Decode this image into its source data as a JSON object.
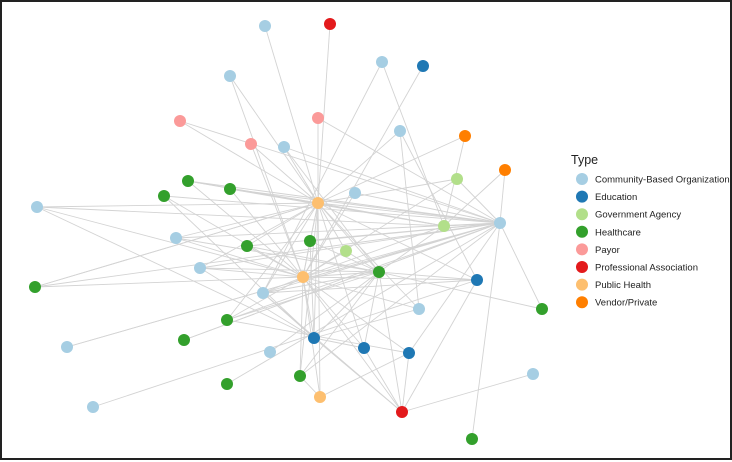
{
  "chart_data": {
    "type": "network",
    "legend": {
      "title": "Type",
      "items": [
        {
          "label": "Community-Based Organization",
          "color": "#a6cee3"
        },
        {
          "label": "Education",
          "color": "#1f78b4"
        },
        {
          "label": "Government Agency",
          "color": "#b2df8a"
        },
        {
          "label": "Healthcare",
          "color": "#33a02c"
        },
        {
          "label": "Payor",
          "color": "#fb9a99"
        },
        {
          "label": "Professional Association",
          "color": "#e31a1c"
        },
        {
          "label": "Public Health",
          "color": "#fdbf6f"
        },
        {
          "label": "Vendor/Private",
          "color": "#ff7f00"
        }
      ]
    },
    "edge_color": "#d3d3d3",
    "nodes": [
      {
        "id": "n1",
        "type": "Community-Based Organization"
      },
      {
        "id": "n2",
        "type": "Professional Association"
      },
      {
        "id": "n3",
        "type": "Community-Based Organization"
      },
      {
        "id": "n4",
        "type": "Education"
      },
      {
        "id": "n5",
        "type": "Community-Based Organization"
      },
      {
        "id": "n6",
        "type": "Payor"
      },
      {
        "id": "n7",
        "type": "Payor"
      },
      {
        "id": "n8",
        "type": "Payor"
      },
      {
        "id": "n9",
        "type": "Community-Based Organization"
      },
      {
        "id": "n10",
        "type": "Community-Based Organization"
      },
      {
        "id": "n11",
        "type": "Vendor/Private"
      },
      {
        "id": "n12",
        "type": "Vendor/Private"
      },
      {
        "id": "n13",
        "type": "Government Agency"
      },
      {
        "id": "n14",
        "type": "Healthcare"
      },
      {
        "id": "n15",
        "type": "Healthcare"
      },
      {
        "id": "n16",
        "type": "Healthcare"
      },
      {
        "id": "n17",
        "type": "Community-Based Organization"
      },
      {
        "id": "n18",
        "type": "Public Health"
      },
      {
        "id": "n19",
        "type": "Community-Based Organization"
      },
      {
        "id": "n20",
        "type": "Government Agency"
      },
      {
        "id": "n21",
        "type": "Community-Based Organization"
      },
      {
        "id": "n22",
        "type": "Community-Based Organization"
      },
      {
        "id": "n23",
        "type": "Healthcare"
      },
      {
        "id": "n24",
        "type": "Healthcare"
      },
      {
        "id": "n25",
        "type": "Government Agency"
      },
      {
        "id": "n26",
        "type": "Community-Based Organization"
      },
      {
        "id": "n27",
        "type": "Public Health"
      },
      {
        "id": "n28",
        "type": "Healthcare"
      },
      {
        "id": "n29",
        "type": "Education"
      },
      {
        "id": "n30",
        "type": "Healthcare"
      },
      {
        "id": "n31",
        "type": "Community-Based Organization"
      },
      {
        "id": "n32",
        "type": "Healthcare"
      },
      {
        "id": "n33",
        "type": "Community-Based Organization"
      },
      {
        "id": "n34",
        "type": "Healthcare"
      },
      {
        "id": "n35",
        "type": "Healthcare"
      },
      {
        "id": "n36",
        "type": "Education"
      },
      {
        "id": "n37",
        "type": "Community-Based Organization"
      },
      {
        "id": "n38",
        "type": "Education"
      },
      {
        "id": "n39",
        "type": "Community-Based Organization"
      },
      {
        "id": "n40",
        "type": "Education"
      },
      {
        "id": "n41",
        "type": "Healthcare"
      },
      {
        "id": "n42",
        "type": "Community-Based Organization"
      },
      {
        "id": "n43",
        "type": "Public Health"
      },
      {
        "id": "n44",
        "type": "Healthcare"
      },
      {
        "id": "n45",
        "type": "Professional Association"
      },
      {
        "id": "n46",
        "type": "Community-Based Organization"
      },
      {
        "id": "n47",
        "type": "Healthcare"
      }
    ],
    "edges": [
      [
        "n1",
        "n18"
      ],
      [
        "n2",
        "n18"
      ],
      [
        "n3",
        "n20"
      ],
      [
        "n4",
        "n27"
      ],
      [
        "n5",
        "n18"
      ],
      [
        "n5",
        "n27"
      ],
      [
        "n6",
        "n18"
      ],
      [
        "n6",
        "n21"
      ],
      [
        "n7",
        "n18"
      ],
      [
        "n7",
        "n27"
      ],
      [
        "n8",
        "n18"
      ],
      [
        "n8",
        "n21"
      ],
      [
        "n9",
        "n18"
      ],
      [
        "n9",
        "n21"
      ],
      [
        "n10",
        "n18"
      ],
      [
        "n10",
        "n33"
      ],
      [
        "n11",
        "n18"
      ],
      [
        "n11",
        "n20"
      ],
      [
        "n12",
        "n20"
      ],
      [
        "n12",
        "n21"
      ],
      [
        "n13",
        "n18"
      ],
      [
        "n13",
        "n21"
      ],
      [
        "n13",
        "n27"
      ],
      [
        "n14",
        "n18"
      ],
      [
        "n14",
        "n21"
      ],
      [
        "n14",
        "n27"
      ],
      [
        "n15",
        "n21"
      ],
      [
        "n15",
        "n27"
      ],
      [
        "n16",
        "n18"
      ],
      [
        "n16",
        "n21"
      ],
      [
        "n16",
        "n27"
      ],
      [
        "n17",
        "n21"
      ],
      [
        "n17",
        "n27"
      ],
      [
        "n18",
        "n19"
      ],
      [
        "n18",
        "n20"
      ],
      [
        "n18",
        "n21"
      ],
      [
        "n18",
        "n22"
      ],
      [
        "n18",
        "n23"
      ],
      [
        "n18",
        "n24"
      ],
      [
        "n18",
        "n25"
      ],
      [
        "n18",
        "n26"
      ],
      [
        "n18",
        "n27"
      ],
      [
        "n18",
        "n28"
      ],
      [
        "n18",
        "n29"
      ],
      [
        "n18",
        "n30"
      ],
      [
        "n18",
        "n31"
      ],
      [
        "n18",
        "n34"
      ],
      [
        "n18",
        "n36"
      ],
      [
        "n18",
        "n38"
      ],
      [
        "n18",
        "n41"
      ],
      [
        "n18",
        "n43"
      ],
      [
        "n19",
        "n20"
      ],
      [
        "n19",
        "n27"
      ],
      [
        "n19",
        "n36"
      ],
      [
        "n20",
        "n21"
      ],
      [
        "n20",
        "n27"
      ],
      [
        "n20",
        "n28"
      ],
      [
        "n21",
        "n23"
      ],
      [
        "n21",
        "n24"
      ],
      [
        "n21",
        "n26"
      ],
      [
        "n21",
        "n27"
      ],
      [
        "n21",
        "n30"
      ],
      [
        "n21",
        "n31"
      ],
      [
        "n21",
        "n32"
      ],
      [
        "n21",
        "n34"
      ],
      [
        "n21",
        "n35"
      ],
      [
        "n21",
        "n37"
      ],
      [
        "n21",
        "n40"
      ],
      [
        "n21",
        "n41"
      ],
      [
        "n22",
        "n21"
      ],
      [
        "n22",
        "n27"
      ],
      [
        "n23",
        "n27"
      ],
      [
        "n24",
        "n27"
      ],
      [
        "n24",
        "n36"
      ],
      [
        "n25",
        "n27"
      ],
      [
        "n25",
        "n28"
      ],
      [
        "n26",
        "n27"
      ],
      [
        "n26",
        "n28"
      ],
      [
        "n27",
        "n28"
      ],
      [
        "n27",
        "n29"
      ],
      [
        "n27",
        "n30"
      ],
      [
        "n27",
        "n31"
      ],
      [
        "n27",
        "n33"
      ],
      [
        "n27",
        "n34"
      ],
      [
        "n27",
        "n36"
      ],
      [
        "n27",
        "n38"
      ],
      [
        "n27",
        "n40"
      ],
      [
        "n27",
        "n41"
      ],
      [
        "n27",
        "n43"
      ],
      [
        "n27",
        "n45"
      ],
      [
        "n28",
        "n29"
      ],
      [
        "n28",
        "n31"
      ],
      [
        "n28",
        "n36"
      ],
      [
        "n28",
        "n38"
      ],
      [
        "n28",
        "n41"
      ],
      [
        "n28",
        "n45"
      ],
      [
        "n29",
        "n31"
      ],
      [
        "n29",
        "n45"
      ],
      [
        "n30",
        "n18"
      ],
      [
        "n31",
        "n36"
      ],
      [
        "n31",
        "n45"
      ],
      [
        "n32",
        "n28"
      ],
      [
        "n33",
        "n18"
      ],
      [
        "n33",
        "n36"
      ],
      [
        "n34",
        "n28"
      ],
      [
        "n34",
        "n40"
      ],
      [
        "n35",
        "n21"
      ],
      [
        "n36",
        "n38"
      ],
      [
        "n36",
        "n45"
      ],
      [
        "n37",
        "n21"
      ],
      [
        "n38",
        "n45"
      ],
      [
        "n39",
        "n28"
      ],
      [
        "n40",
        "n43"
      ],
      [
        "n40",
        "n45"
      ],
      [
        "n41",
        "n43"
      ],
      [
        "n42",
        "n45"
      ],
      [
        "n44",
        "n21"
      ],
      [
        "n46",
        "n29"
      ],
      [
        "n47",
        "n21"
      ],
      [
        "n14",
        "n20"
      ],
      [
        "n16",
        "n20"
      ],
      [
        "n24",
        "n28"
      ],
      [
        "n23",
        "n28"
      ],
      [
        "n26",
        "n36"
      ],
      [
        "n10",
        "n29"
      ],
      [
        "n9",
        "n28"
      ],
      [
        "n3",
        "n31"
      ],
      [
        "n15",
        "n36"
      ],
      [
        "n22",
        "n28"
      ]
    ]
  }
}
